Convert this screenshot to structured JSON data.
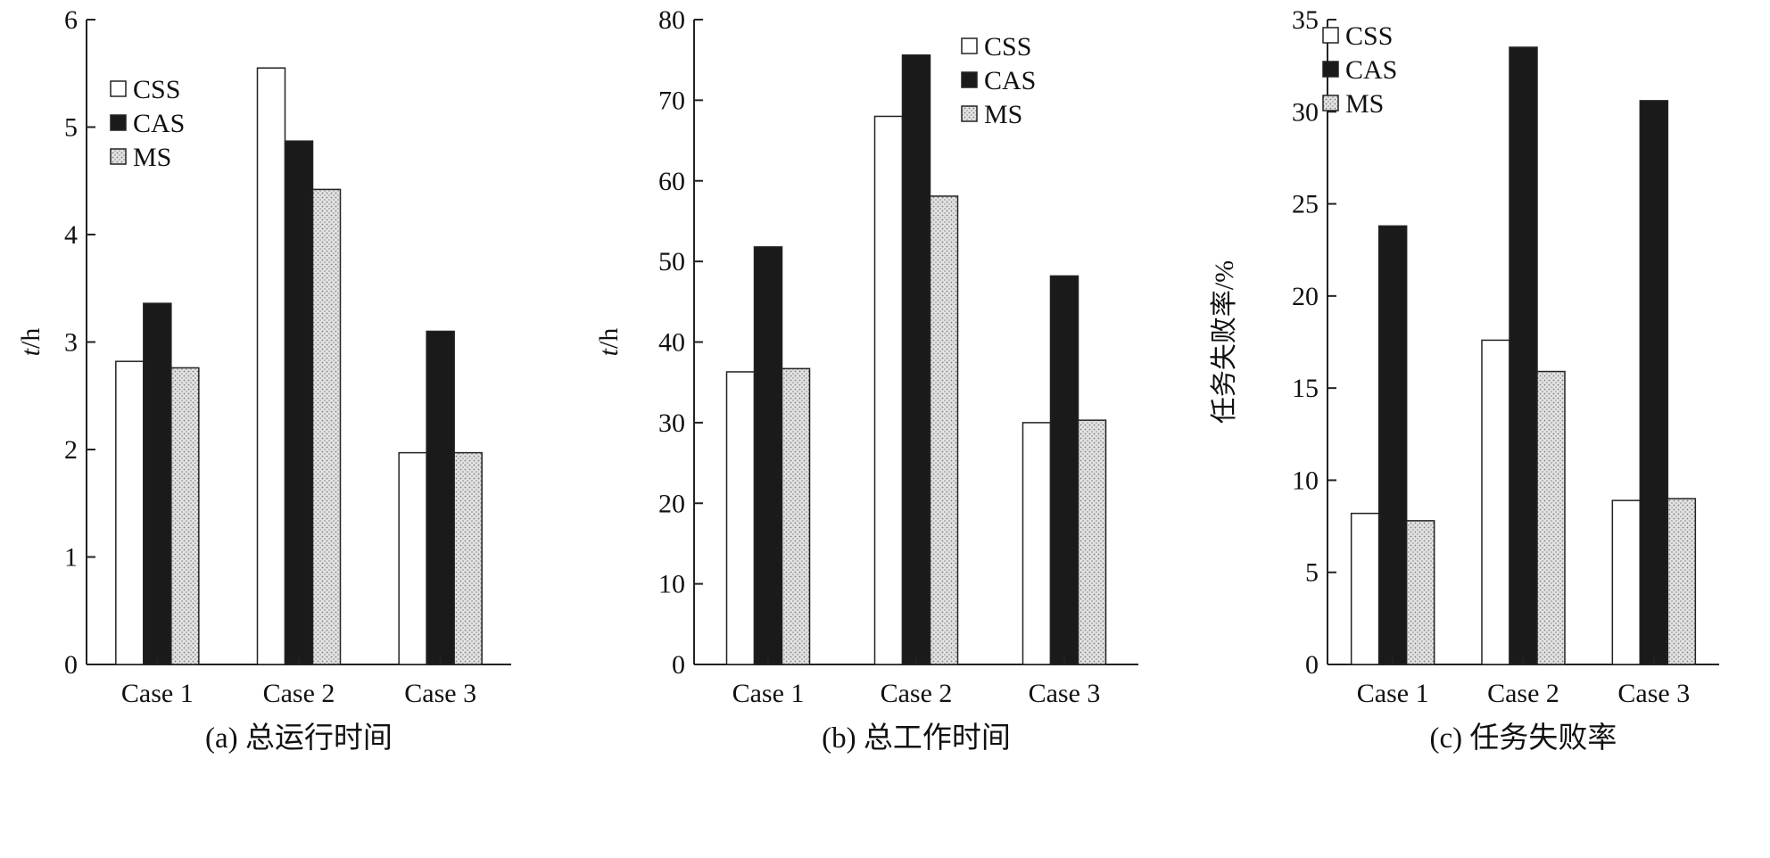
{
  "colors": {
    "CSS": "#ffffff",
    "CAS": "#1a1a1a",
    "MS": "pattern-dots",
    "stroke": "#222222"
  },
  "chart_data": [
    {
      "type": "bar",
      "caption": "(a) 总运行时间",
      "ylabel_italic": "t",
      "ylabel_unit": "/h",
      "categories": [
        "Case 1",
        "Case 2",
        "Case 3"
      ],
      "series": [
        {
          "name": "CSS",
          "values": [
            2.82,
            5.55,
            1.97
          ]
        },
        {
          "name": "CAS",
          "values": [
            3.36,
            4.87,
            3.1
          ]
        },
        {
          "name": "MS",
          "values": [
            2.76,
            4.42,
            1.97
          ]
        }
      ],
      "ylim": [
        0,
        6
      ],
      "yticks": [
        0,
        1,
        2,
        3,
        4,
        5,
        6
      ],
      "legend": "top-left"
    },
    {
      "type": "bar",
      "caption": "(b) 总工作时间",
      "ylabel_italic": "t",
      "ylabel_unit": "/h",
      "categories": [
        "Case 1",
        "Case 2",
        "Case 3"
      ],
      "series": [
        {
          "name": "CSS",
          "values": [
            36.3,
            68.0,
            30.0
          ]
        },
        {
          "name": "CAS",
          "values": [
            51.8,
            75.6,
            48.2
          ]
        },
        {
          "name": "MS",
          "values": [
            36.7,
            58.1,
            30.3
          ]
        }
      ],
      "ylim": [
        0,
        80
      ],
      "yticks": [
        0,
        10,
        20,
        30,
        40,
        50,
        60,
        70,
        80
      ],
      "legend": "top-right"
    },
    {
      "type": "bar",
      "caption": "(c) 任务失败率",
      "ylabel_italic": "",
      "ylabel_unit": "任务失败率/%",
      "categories": [
        "Case 1",
        "Case 2",
        "Case 3"
      ],
      "series": [
        {
          "name": "CSS",
          "values": [
            8.2,
            17.6,
            8.9
          ]
        },
        {
          "name": "CAS",
          "values": [
            23.8,
            33.5,
            30.6
          ]
        },
        {
          "name": "MS",
          "values": [
            7.8,
            15.9,
            9.0
          ]
        }
      ],
      "ylim": [
        0,
        35
      ],
      "yticks": [
        0,
        5,
        10,
        15,
        20,
        25,
        30,
        35
      ],
      "legend": "top-left"
    }
  ]
}
